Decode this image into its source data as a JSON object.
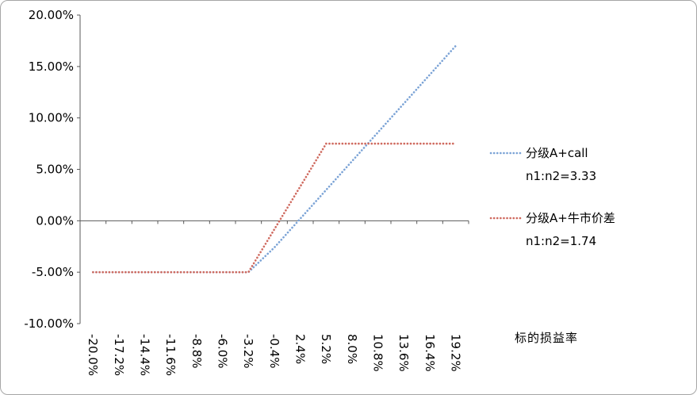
{
  "chart_data": {
    "type": "line",
    "title": "",
    "xlabel": "标的损益率",
    "ylabel": "",
    "ylim": [
      -10,
      20
    ],
    "ytick_step": 5,
    "ytick_labels": [
      "20.00%",
      "15.00%",
      "10.00%",
      "5.00%",
      "0.00%",
      "-5.00%",
      "-10.00%"
    ],
    "grid": false,
    "line_style": "dotted",
    "legend_position": "right",
    "categories": [
      "-20.0%",
      "-17.2%",
      "-14.4%",
      "-11.6%",
      "-8.8%",
      "-6.0%",
      "-3.2%",
      "-0.4%",
      "2.4%",
      "5.2%",
      "8.0%",
      "10.8%",
      "13.6%",
      "16.4%",
      "19.2%"
    ],
    "series": [
      {
        "name": "分级A+call",
        "subtitle": "n1:n2=3.33",
        "color": "#7ba3d6",
        "values": [
          -5,
          -5,
          -5,
          -5,
          -5,
          -5,
          -5,
          -2.6,
          0.2,
          3.0,
          5.8,
          8.6,
          11.4,
          14.2,
          17.0
        ]
      },
      {
        "name": "分级A+牛市价差",
        "subtitle": "n1:n2=1.74",
        "color": "#cf6a5f",
        "values": [
          -5,
          -5,
          -5,
          -5,
          -5,
          -5,
          -5,
          -0.83,
          3.33,
          7.5,
          7.5,
          7.5,
          7.5,
          7.5,
          7.5
        ]
      }
    ],
    "axis_color": "#595959",
    "text_color": "#000000"
  }
}
